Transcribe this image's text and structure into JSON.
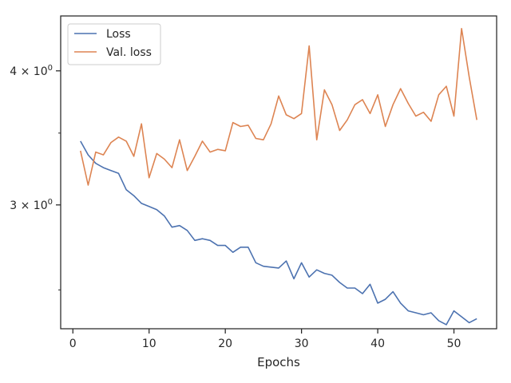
{
  "chart_data": {
    "type": "line",
    "title": "",
    "xlabel": "Epochs",
    "ylabel": "",
    "yscale": "log",
    "xlim": [
      -1.6,
      55.6
    ],
    "ylim": [
      2.3,
      4.5
    ],
    "grid": false,
    "legend": "top-left",
    "xticks": [
      {
        "value": 0,
        "label": "0"
      },
      {
        "value": 10,
        "label": "10"
      },
      {
        "value": 20,
        "label": "20"
      },
      {
        "value": 30,
        "label": "30"
      },
      {
        "value": 40,
        "label": "40"
      },
      {
        "value": 50,
        "label": "50"
      }
    ],
    "yticks": [
      {
        "value": 3,
        "label": "3 × 10",
        "exp": "0"
      },
      {
        "value": 4,
        "label": "4 × 10",
        "exp": "0"
      }
    ],
    "x": [
      1,
      2,
      3,
      4,
      5,
      6,
      7,
      8,
      9,
      10,
      11,
      12,
      13,
      14,
      15,
      16,
      17,
      18,
      19,
      20,
      21,
      22,
      23,
      24,
      25,
      26,
      27,
      28,
      29,
      30,
      31,
      32,
      33,
      34,
      35,
      36,
      37,
      38,
      39,
      40,
      41,
      42,
      43,
      44,
      45,
      46,
      47,
      48,
      49,
      50,
      51,
      52,
      53
    ],
    "series": [
      {
        "name": "Loss",
        "color": "#4c72b0",
        "values": [
          3.44,
          3.34,
          3.28,
          3.25,
          3.23,
          3.21,
          3.1,
          3.06,
          3.01,
          2.99,
          2.97,
          2.93,
          2.86,
          2.87,
          2.84,
          2.78,
          2.79,
          2.78,
          2.75,
          2.75,
          2.71,
          2.74,
          2.74,
          2.65,
          2.63,
          2.625,
          2.62,
          2.66,
          2.56,
          2.65,
          2.57,
          2.61,
          2.59,
          2.58,
          2.54,
          2.51,
          2.51,
          2.48,
          2.53,
          2.43,
          2.45,
          2.49,
          2.43,
          2.39,
          2.38,
          2.37,
          2.38,
          2.34,
          2.32,
          2.39,
          2.36,
          2.33,
          2.35
        ]
      },
      {
        "name": "Val. loss",
        "color": "#dd8452",
        "values": [
          3.37,
          3.13,
          3.36,
          3.34,
          3.43,
          3.47,
          3.44,
          3.33,
          3.57,
          3.18,
          3.35,
          3.31,
          3.25,
          3.45,
          3.23,
          3.33,
          3.44,
          3.36,
          3.38,
          3.37,
          3.58,
          3.55,
          3.56,
          3.46,
          3.45,
          3.57,
          3.79,
          3.64,
          3.61,
          3.65,
          4.22,
          3.45,
          3.84,
          3.72,
          3.52,
          3.6,
          3.72,
          3.76,
          3.65,
          3.8,
          3.55,
          3.72,
          3.85,
          3.73,
          3.63,
          3.66,
          3.59,
          3.8,
          3.87,
          3.63,
          4.38,
          3.95,
          3.6
        ]
      }
    ]
  }
}
